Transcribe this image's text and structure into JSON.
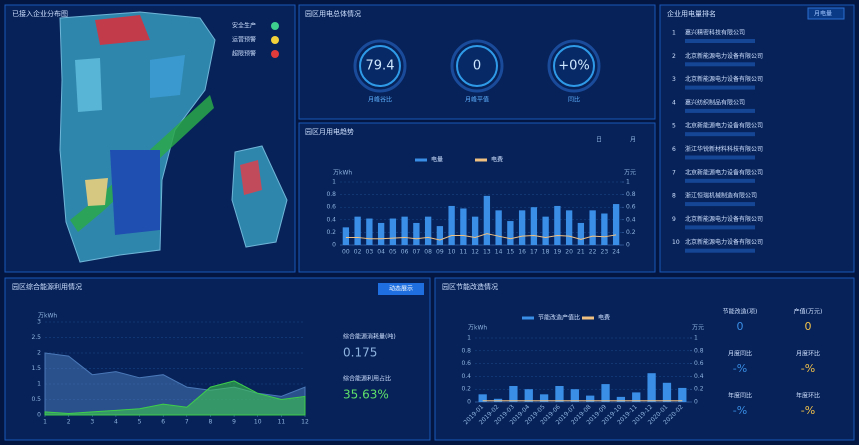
{
  "map_panel": {
    "title": "已接入企业分布图",
    "legend": [
      {
        "label": "安全生产",
        "color": "#3ecf8e"
      },
      {
        "label": "运营预警",
        "color": "#f2d13a"
      },
      {
        "label": "超限预警",
        "color": "#e23b3b"
      }
    ]
  },
  "gauges_panel": {
    "title": "园区用电总体情况",
    "gauges": [
      {
        "value": "79.4",
        "label": "月峰谷比"
      },
      {
        "value": "0",
        "label": "月峰平值"
      },
      {
        "value": "+0%",
        "label": "同比"
      }
    ]
  },
  "ranking_panel": {
    "title": "企业用电量排名",
    "dropdown": "月电量",
    "items": [
      {
        "rank": 1,
        "name": "嘉兴精密科技有限公司"
      },
      {
        "rank": 2,
        "name": "北京新能源电力设备有限公司"
      },
      {
        "rank": 3,
        "name": "北京新能源电力设备有限公司"
      },
      {
        "rank": 4,
        "name": "嘉兴纺织制品有限公司"
      },
      {
        "rank": 5,
        "name": "北京新能源电力设备有限公司"
      },
      {
        "rank": 6,
        "name": "浙江华锐新材料科技有限公司"
      },
      {
        "rank": 7,
        "name": "北京新能源电力设备有限公司"
      },
      {
        "rank": 8,
        "name": "浙江恒瑞机械制造有限公司"
      },
      {
        "rank": 9,
        "name": "北京新能源电力设备有限公司"
      },
      {
        "rank": 10,
        "name": "北京新能源电力设备有限公司"
      }
    ]
  },
  "chart_data": [
    {
      "type": "bar",
      "title": "园区月用电趋势",
      "tabs": [
        "日",
        "月"
      ],
      "y_label": "万kWh",
      "y2_label": "万元",
      "categories": [
        "00",
        "02",
        "03",
        "04",
        "05",
        "06",
        "07",
        "08",
        "09",
        "10",
        "11",
        "12",
        "13",
        "14",
        "15",
        "16",
        "17",
        "18",
        "19",
        "20",
        "21",
        "22",
        "23",
        "24"
      ],
      "series": [
        {
          "name": "电量",
          "type": "bar",
          "color": "#3a8ee6",
          "values": [
            0.28,
            0.45,
            0.42,
            0.35,
            0.42,
            0.45,
            0.35,
            0.45,
            0.3,
            0.62,
            0.58,
            0.45,
            0.78,
            0.55,
            0.38,
            0.55,
            0.6,
            0.45,
            0.62,
            0.55,
            0.35,
            0.55,
            0.5,
            0.65
          ]
        },
        {
          "name": "电费",
          "type": "line",
          "axis": "y2",
          "color": "#f0c080",
          "values": [
            0.12,
            0.12,
            0.1,
            0.1,
            0.11,
            0.12,
            0.1,
            0.12,
            0.08,
            0.15,
            0.15,
            0.12,
            0.18,
            0.14,
            0.1,
            0.14,
            0.15,
            0.12,
            0.15,
            0.14,
            0.09,
            0.14,
            0.13,
            0.16
          ]
        }
      ],
      "ylim": [
        0,
        1
      ],
      "yticks": [
        0,
        0.2,
        0.4,
        0.6,
        0.8,
        1
      ],
      "y2lim": [
        0,
        1
      ],
      "y2ticks": [
        0,
        0.2,
        0.4,
        0.6,
        0.8,
        1
      ],
      "grid": true
    },
    {
      "type": "area",
      "title": "园区综合能源利用情况",
      "button": "动态展示",
      "y_label": "万kWh",
      "x": [
        1,
        2,
        3,
        4,
        5,
        6,
        7,
        8,
        9,
        10,
        11,
        12
      ],
      "xlim": [
        1,
        12
      ],
      "xticks": [
        1,
        2,
        3,
        4,
        5,
        6,
        7,
        8,
        9,
        10,
        11,
        12
      ],
      "series": [
        {
          "name": "综合能源消耗量",
          "type": "area",
          "color": "#4a78b8",
          "values": [
            2.0,
            1.9,
            1.3,
            1.4,
            1.2,
            1.3,
            0.9,
            0.8,
            0.9,
            0.7,
            0.6,
            0.9
          ]
        },
        {
          "name": "综合能源利用占比",
          "type": "area",
          "color": "#3ecf4a",
          "values": [
            0.1,
            0.05,
            0.1,
            0.15,
            0.2,
            0.35,
            0.25,
            0.9,
            1.1,
            0.7,
            0.5,
            0.6
          ]
        }
      ],
      "ylim": [
        0,
        3
      ],
      "yticks": [
        0,
        0.5,
        1,
        1.5,
        2,
        2.5,
        3
      ],
      "grid": true,
      "legend": false
    },
    {
      "type": "bar",
      "title": "园区节能改造情况",
      "y_label": "万kWh",
      "y2_label": "万元",
      "categories": [
        "2019-01",
        "2019-02",
        "2019-03",
        "2019-04",
        "2019-05",
        "2019-06",
        "2019-07",
        "2019-08",
        "2019-09",
        "2019-10",
        "2019-11",
        "2019-12",
        "2020-01",
        "2020-02"
      ],
      "series": [
        {
          "name": "节能改造产值比",
          "type": "bar",
          "color": "#3a8ee6",
          "values": [
            0.12,
            0.05,
            0.25,
            0.2,
            0.12,
            0.25,
            0.2,
            0.1,
            0.28,
            0.08,
            0.15,
            0.45,
            0.3,
            0.22
          ]
        },
        {
          "name": "电费",
          "type": "line",
          "axis": "y2",
          "color": "#f0c080",
          "values": [
            0.02,
            0.02,
            0.02,
            0.02,
            0.02,
            0.02,
            0.02,
            0.02,
            0.02,
            0.02,
            0.02,
            0.02,
            0.02,
            0.02
          ]
        }
      ],
      "ylim": [
        0,
        1
      ],
      "yticks": [
        0,
        0.2,
        0.4,
        0.6,
        0.8,
        1
      ],
      "y2lim": [
        0,
        1
      ],
      "y2ticks": [
        0,
        0.2,
        0.4,
        0.6,
        0.8,
        1
      ],
      "grid": true
    }
  ],
  "energy_stats": [
    {
      "label": "综合能源消耗量(吨)",
      "value": "0.175",
      "color": "#8fb3e0"
    },
    {
      "label": "综合能源利用占比",
      "value": "35.63%",
      "color": "#5fe06a"
    }
  ],
  "retrofit_stats": [
    {
      "label": "节能改造(项)",
      "value": "0",
      "color": "#3a8ee6"
    },
    {
      "label": "产值(万元)",
      "value": "0",
      "color": "#f2c14a"
    },
    {
      "label": "月度同比",
      "value": "-%",
      "color": "#3a8ee6"
    },
    {
      "label": "月度环比",
      "value": "-%",
      "color": "#f2c14a"
    },
    {
      "label": "年度同比",
      "value": "-%",
      "color": "#3a8ee6"
    },
    {
      "label": "年度环比",
      "value": "-%",
      "color": "#f2c14a"
    }
  ]
}
